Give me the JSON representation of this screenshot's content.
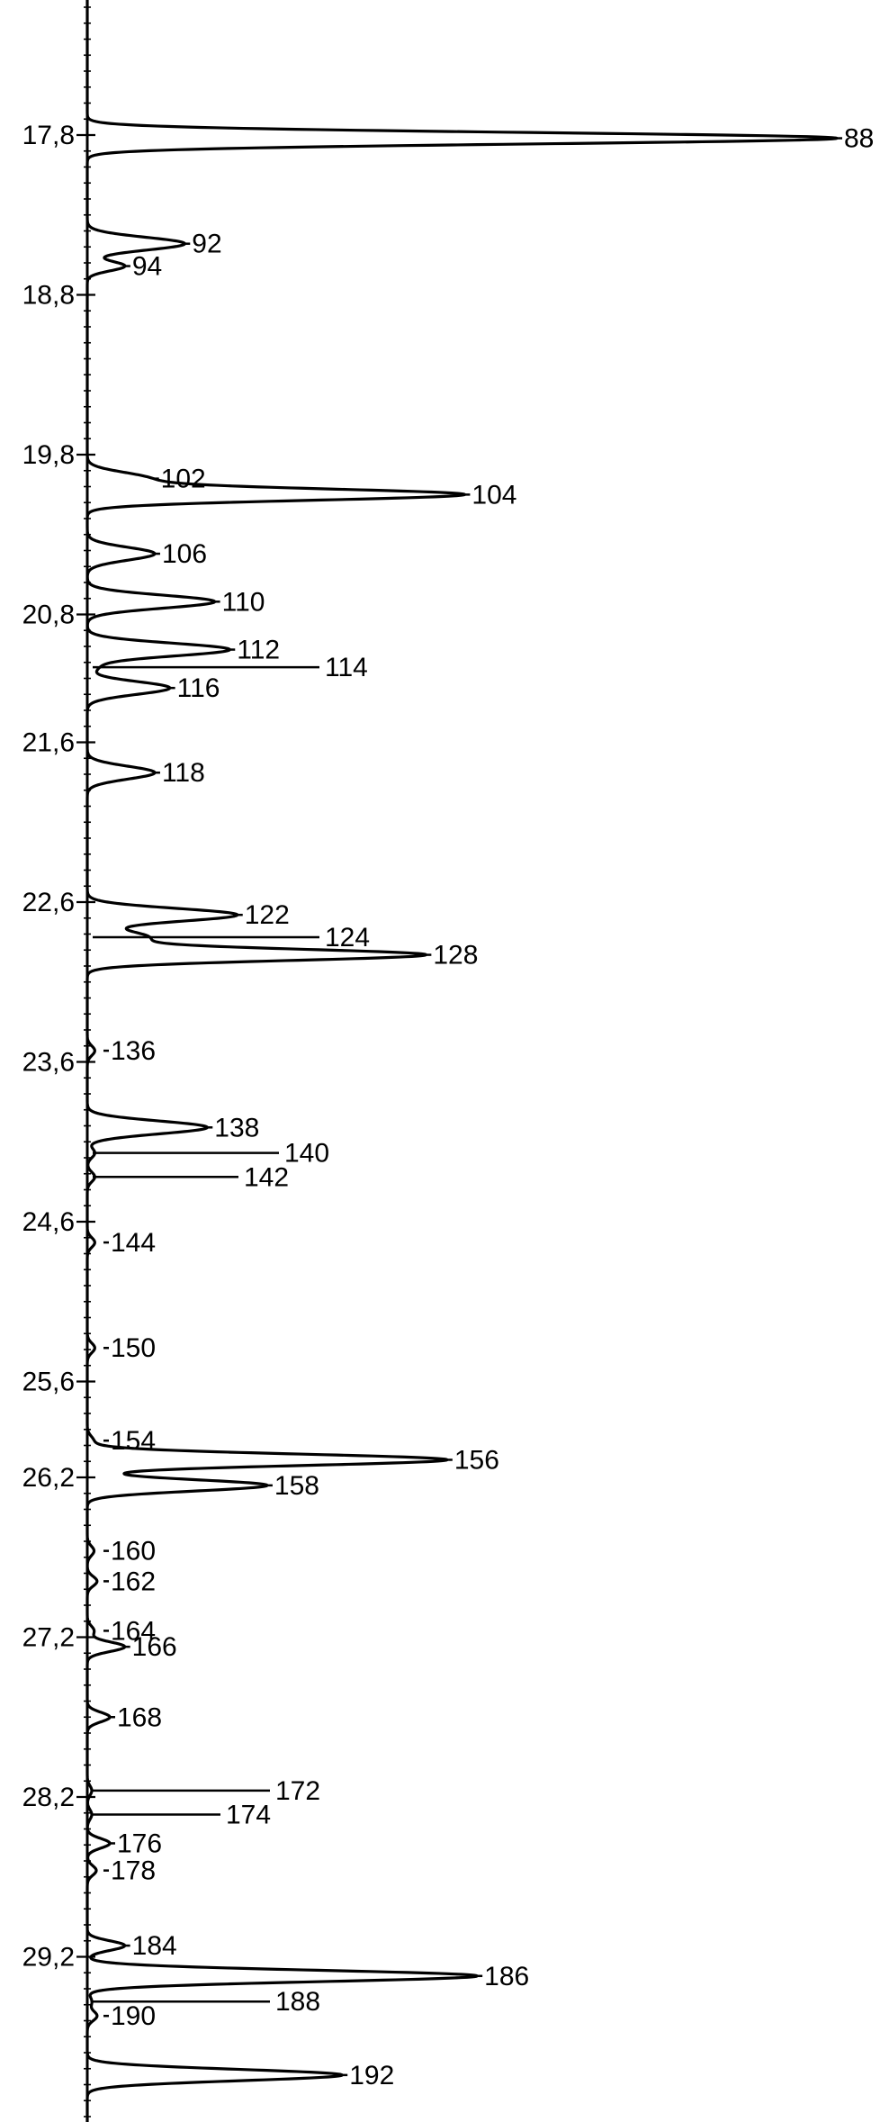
{
  "chart_data": {
    "type": "line",
    "orientation": "vertical",
    "title": "",
    "xlabel": "",
    "ylabel": "",
    "grid": false,
    "legend": "none",
    "axis": {
      "ylim": [
        16.8,
        30.5
      ],
      "ticks": [
        "17,8",
        "18,8",
        "19,8",
        "20,8",
        "21,6",
        "22,6",
        "23,6",
        "24,6",
        "25,6",
        "26,2",
        "27,2",
        "28,2",
        "29,2"
      ],
      "tick_values": [
        17.8,
        18.8,
        19.8,
        20.8,
        21.6,
        22.6,
        23.6,
        24.6,
        25.6,
        26.2,
        27.2,
        28.2,
        29.2
      ]
    },
    "peaks": [
      {
        "label": "88",
        "rt": 17.82,
        "height": 100
      },
      {
        "label": "92",
        "rt": 18.48,
        "height": 13
      },
      {
        "label": "94",
        "rt": 18.62,
        "height": 5
      },
      {
        "label": "102",
        "rt": 19.95,
        "height": 8
      },
      {
        "label": "104",
        "rt": 20.05,
        "height": 50
      },
      {
        "label": "106",
        "rt": 20.42,
        "height": 9
      },
      {
        "label": "110",
        "rt": 20.72,
        "height": 17
      },
      {
        "label": "112",
        "rt": 21.02,
        "height": 19
      },
      {
        "label": "114",
        "rt": 21.13,
        "height": 1.2
      },
      {
        "label": "116",
        "rt": 21.26,
        "height": 11
      },
      {
        "label": "118",
        "rt": 21.79,
        "height": 9
      },
      {
        "label": "122",
        "rt": 22.68,
        "height": 20
      },
      {
        "label": "124",
        "rt": 22.82,
        "height": 8
      },
      {
        "label": "128",
        "rt": 22.93,
        "height": 45
      },
      {
        "label": "136",
        "rt": 23.53,
        "height": 1
      },
      {
        "label": "138",
        "rt": 24.01,
        "height": 16
      },
      {
        "label": "140",
        "rt": 24.17,
        "height": 1
      },
      {
        "label": "142",
        "rt": 24.32,
        "height": 1
      },
      {
        "label": "144",
        "rt": 24.73,
        "height": 1
      },
      {
        "label": "150",
        "rt": 25.39,
        "height": 1
      },
      {
        "label": "154",
        "rt": 25.97,
        "height": 0.8
      },
      {
        "label": "156",
        "rt": 26.09,
        "height": 48
      },
      {
        "label": "158",
        "rt": 26.25,
        "height": 24
      },
      {
        "label": "160",
        "rt": 26.66,
        "height": 0.9
      },
      {
        "label": "162",
        "rt": 26.85,
        "height": 1.3
      },
      {
        "label": "164",
        "rt": 27.16,
        "height": 0.9
      },
      {
        "label": "166",
        "rt": 27.26,
        "height": 5
      },
      {
        "label": "168",
        "rt": 27.7,
        "height": 3
      },
      {
        "label": "172",
        "rt": 28.16,
        "height": 0.6
      },
      {
        "label": "174",
        "rt": 28.31,
        "height": 0.6
      },
      {
        "label": "176",
        "rt": 28.49,
        "height": 3
      },
      {
        "label": "178",
        "rt": 28.66,
        "height": 1.2
      },
      {
        "label": "184",
        "rt": 29.13,
        "height": 5
      },
      {
        "label": "186",
        "rt": 29.32,
        "height": 52
      },
      {
        "label": "188",
        "rt": 29.48,
        "height": 0.6
      },
      {
        "label": "190",
        "rt": 29.57,
        "height": 1.3
      },
      {
        "label": "192",
        "rt": 29.94,
        "height": 34
      }
    ]
  }
}
